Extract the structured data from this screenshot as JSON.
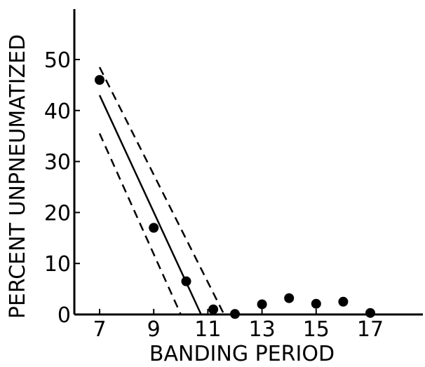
{
  "chart_data": {
    "type": "scatter",
    "title": "",
    "xlabel": "BANDING PERIOD",
    "ylabel": "PERCENT UNPNEUMATIZED",
    "xlim": [
      7,
      18.5
    ],
    "ylim": [
      0,
      52
    ],
    "x_ticks": [
      7,
      9,
      11,
      13,
      15,
      17
    ],
    "x_tick_labels": [
      "7",
      "9",
      "11",
      "13",
      "15",
      "17"
    ],
    "y_ticks": [
      0,
      10,
      20,
      30,
      40,
      50
    ],
    "y_tick_labels": [
      "0",
      "10",
      "20",
      "30",
      "40",
      "50"
    ],
    "grid": false,
    "points": [
      {
        "x": 7.0,
        "y": 46.0
      },
      {
        "x": 9.0,
        "y": 17.0
      },
      {
        "x": 10.2,
        "y": 6.5
      },
      {
        "x": 11.2,
        "y": 1.0
      },
      {
        "x": 12.0,
        "y": 0.1
      },
      {
        "x": 13.0,
        "y": 2.0
      },
      {
        "x": 14.0,
        "y": 3.2
      },
      {
        "x": 15.0,
        "y": 2.1
      },
      {
        "x": 16.0,
        "y": 2.5
      },
      {
        "x": 17.0,
        "y": 0.3
      }
    ],
    "lines": [
      {
        "name": "",
        "style": "solid",
        "x": [
          7.0,
          10.75
        ],
        "y": [
          43.0,
          0.0
        ]
      },
      {
        "name": "",
        "style": "dashed",
        "x": [
          7.0,
          11.6
        ],
        "y": [
          48.5,
          0.0
        ]
      },
      {
        "name": "",
        "style": "dashed",
        "x": [
          7.0,
          10.0
        ],
        "y": [
          35.5,
          0.0
        ]
      }
    ],
    "colors": {
      "ink": "#000000",
      "background": "#ffffff"
    }
  }
}
